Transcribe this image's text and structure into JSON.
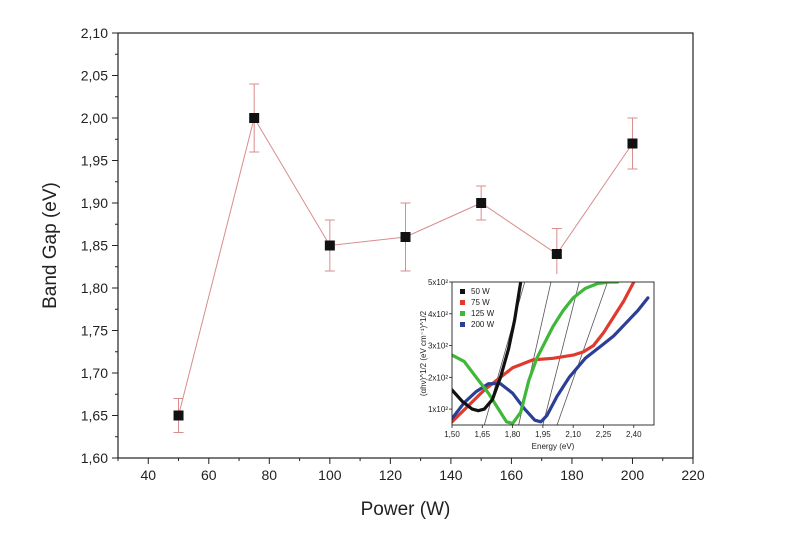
{
  "chart_data": [
    {
      "type": "scatter",
      "xlabel": "Power (W)",
      "ylabel": "Band Gap (eV)",
      "xlim": [
        30,
        220
      ],
      "ylim": [
        1.6,
        2.1
      ],
      "xticks": [
        "40",
        "60",
        "80",
        "100",
        "120",
        "140",
        "160",
        "180",
        "200",
        "220"
      ],
      "xtick_values": [
        40,
        60,
        80,
        100,
        120,
        140,
        160,
        180,
        200,
        220
      ],
      "yticks": [
        "1,60",
        "1,65",
        "1,70",
        "1,75",
        "1,80",
        "1,85",
        "1,90",
        "1,95",
        "2,00",
        "2,05",
        "2,10"
      ],
      "ytick_values": [
        1.6,
        1.65,
        1.7,
        1.75,
        1.8,
        1.85,
        1.9,
        1.95,
        2.0,
        2.05,
        2.1
      ],
      "series": [
        {
          "x": [
            50,
            75,
            100,
            125,
            150,
            175,
            200
          ],
          "y": [
            1.65,
            2.0,
            1.85,
            1.86,
            1.9,
            1.84,
            1.97
          ],
          "yerr": [
            0.02,
            0.04,
            0.03,
            0.04,
            0.02,
            0.03,
            0.03
          ],
          "marker": "square",
          "connected": true
        }
      ],
      "colors": {
        "line": "#d98c8c",
        "marker": "#111111",
        "errorbar": "#d98c8c"
      }
    },
    {
      "type": "line",
      "xlabel": "Energy (eV)",
      "ylabel": "(αhν)^1/2 (eV cm⁻¹)^1/2",
      "xlim": [
        1.5,
        2.5
      ],
      "ylim": [
        0.5,
        5
      ],
      "xticks": [
        "1,50",
        "1,65",
        "1,80",
        "1,95",
        "2,10",
        "2,25",
        "2,40"
      ],
      "xtick_values": [
        1.5,
        1.65,
        1.8,
        1.95,
        2.1,
        2.25,
        2.4
      ],
      "yticks": [
        "1x10²",
        "2x10²",
        "3x10²",
        "4x10²",
        "5x10²"
      ],
      "ytick_values": [
        1,
        2,
        3,
        4,
        5
      ],
      "legend_position": "top-left",
      "series": [
        {
          "name": "50 W",
          "color": "#111111",
          "x": [
            1.5,
            1.55,
            1.6,
            1.63,
            1.66,
            1.7,
            1.74,
            1.78,
            1.81,
            1.84
          ],
          "y": [
            1.6,
            1.25,
            1.0,
            0.95,
            1.0,
            1.3,
            2.0,
            2.9,
            3.8,
            5.0
          ]
        },
        {
          "name": "75 W",
          "color": "#e03a2e",
          "x": [
            1.5,
            1.58,
            1.66,
            1.74,
            1.8,
            1.84,
            1.9,
            2.0,
            2.1,
            2.15,
            2.2,
            2.25,
            2.3,
            2.35,
            2.4
          ],
          "y": [
            0.6,
            1.1,
            1.6,
            2.0,
            2.3,
            2.4,
            2.55,
            2.6,
            2.7,
            2.8,
            3.0,
            3.4,
            3.9,
            4.4,
            5.0
          ]
        },
        {
          "name": "125 W",
          "color": "#3fb83a",
          "x": [
            1.5,
            1.56,
            1.62,
            1.68,
            1.73,
            1.77,
            1.8,
            1.84,
            1.88,
            1.92,
            1.96,
            2.0,
            2.05,
            2.1,
            2.16,
            2.22,
            2.28,
            2.32
          ],
          "y": [
            2.7,
            2.5,
            2.0,
            1.5,
            1.0,
            0.6,
            0.55,
            0.9,
            1.9,
            2.6,
            3.1,
            3.6,
            4.1,
            4.5,
            4.8,
            4.95,
            5.0,
            5.0
          ]
        },
        {
          "name": "200 W",
          "color": "#2b3f96",
          "x": [
            1.5,
            1.56,
            1.62,
            1.68,
            1.74,
            1.8,
            1.86,
            1.91,
            1.94,
            1.97,
            2.02,
            2.08,
            2.16,
            2.24,
            2.3,
            2.36,
            2.42,
            2.47
          ],
          "y": [
            0.7,
            1.2,
            1.55,
            1.8,
            1.8,
            1.5,
            1.0,
            0.65,
            0.6,
            0.8,
            1.4,
            2.0,
            2.6,
            3.0,
            3.3,
            3.7,
            4.1,
            4.5
          ]
        }
      ],
      "tangent_lines": [
        {
          "x": [
            1.66,
            1.86
          ],
          "y": [
            0.5,
            5.0
          ]
        },
        {
          "x": [
            1.83,
            1.99
          ],
          "y": [
            0.5,
            5.0
          ]
        },
        {
          "x": [
            1.95,
            2.13
          ],
          "y": [
            0.5,
            5.0
          ]
        },
        {
          "x": [
            2.02,
            2.27
          ],
          "y": [
            0.5,
            5.0
          ]
        }
      ]
    }
  ]
}
